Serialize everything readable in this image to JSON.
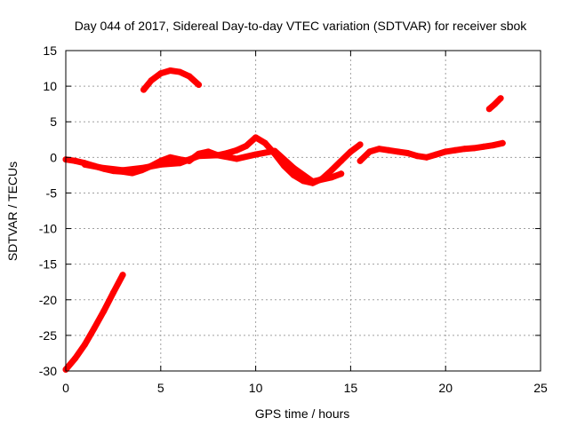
{
  "chart_data": {
    "type": "scatter",
    "title": "Day 044 of 2017, Sidereal Day-to-day VTEC variation (SDTVAR) for receiver sbok",
    "xlabel": "GPS time / hours",
    "ylabel": "SDTVAR / TECUs",
    "xlim": [
      0,
      25
    ],
    "ylim": [
      -30,
      15
    ],
    "xticks": [
      0,
      5,
      10,
      15,
      20,
      25
    ],
    "yticks": [
      -30,
      -25,
      -20,
      -15,
      -10,
      -5,
      0,
      5,
      10,
      15
    ],
    "grid": true,
    "legend": "none",
    "series_color": "#ff0000",
    "series": [
      {
        "name": "segment-1",
        "x": [
          0.0,
          0.5,
          1.0,
          1.5,
          2.0,
          2.5,
          3.0
        ],
        "y": [
          -29.8,
          -28.2,
          -26.3,
          -24.0,
          -21.6,
          -19.0,
          -16.5
        ]
      },
      {
        "name": "segment-2",
        "x": [
          4.1,
          4.5,
          5.0,
          5.5,
          6.0,
          6.5,
          7.0
        ],
        "y": [
          9.5,
          10.8,
          11.8,
          12.2,
          12.0,
          11.4,
          10.2
        ]
      },
      {
        "name": "segment-3",
        "x": [
          0.0,
          0.5,
          1.0,
          1.5,
          2.0,
          2.5,
          3.0,
          3.5,
          4.0,
          4.5,
          5.0,
          5.5,
          6.0,
          6.5,
          7.0,
          7.5,
          8.0,
          8.5,
          9.0,
          9.5,
          10.0,
          10.5,
          11.0,
          11.5,
          12.0,
          12.5,
          13.0,
          13.5,
          14.0,
          14.5,
          15.0,
          15.5
        ],
        "y": [
          -0.3,
          -0.5,
          -0.8,
          -1.2,
          -1.6,
          -1.9,
          -2.0,
          -2.2,
          -1.8,
          -1.2,
          -0.5,
          0.0,
          -0.3,
          -0.5,
          0.5,
          0.8,
          0.3,
          0.6,
          1.0,
          1.6,
          2.8,
          2.0,
          0.5,
          -1.2,
          -2.5,
          -3.3,
          -3.6,
          -3.0,
          -1.8,
          -0.5,
          0.8,
          1.8
        ]
      },
      {
        "name": "segment-4",
        "x": [
          1.0,
          2.0,
          3.0,
          4.0,
          5.0,
          6.0,
          7.0,
          8.0,
          9.0,
          10.0,
          11.0,
          12.0,
          13.0,
          14.0,
          14.5
        ],
        "y": [
          -1.0,
          -1.5,
          -1.8,
          -1.5,
          -1.0,
          -0.8,
          0.2,
          0.3,
          -0.2,
          0.4,
          0.9,
          -1.5,
          -3.4,
          -2.8,
          -2.3
        ]
      },
      {
        "name": "segment-5",
        "x": [
          15.5,
          16.0,
          16.5,
          17.0,
          17.5,
          18.0,
          18.5,
          19.0,
          19.5,
          20.0,
          20.5,
          21.0,
          21.5,
          22.0,
          22.5,
          23.0
        ],
        "y": [
          -0.5,
          0.8,
          1.2,
          1.0,
          0.8,
          0.6,
          0.2,
          0.0,
          0.4,
          0.8,
          1.0,
          1.2,
          1.3,
          1.5,
          1.7,
          2.0
        ]
      },
      {
        "name": "segment-6",
        "x": [
          22.3,
          22.6,
          22.9
        ],
        "y": [
          6.8,
          7.5,
          8.3
        ]
      }
    ]
  }
}
